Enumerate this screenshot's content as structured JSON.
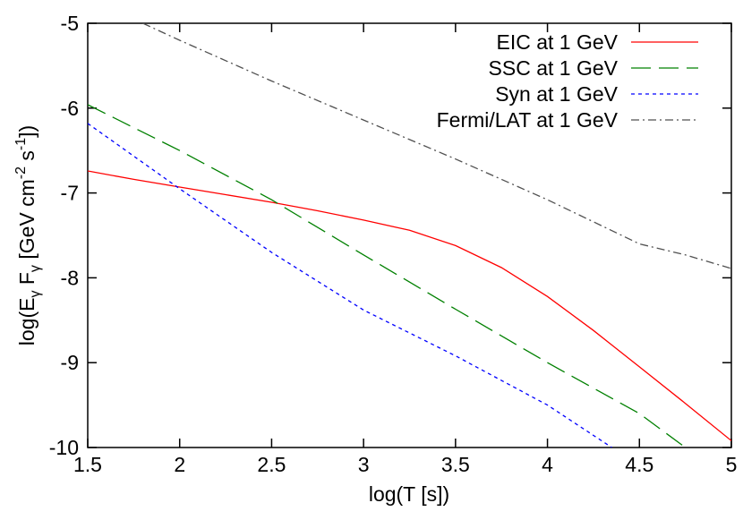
{
  "chart_data": {
    "type": "line",
    "title": "",
    "xlabel": "log(T [s])",
    "ylabel": "log(Eγ Fγ [GeV cm⁻² s⁻¹])",
    "ylabel_parts": {
      "open": "log(E",
      "sub1": "γ",
      "mid": " F",
      "sub2": "γ",
      "unit_open": " [GeV cm",
      "exp1": "-2",
      "space": " s",
      "exp2": "-1",
      "close": "])"
    },
    "xlim": [
      1.5,
      5
    ],
    "ylim": [
      -10,
      -5
    ],
    "xticks": [
      1.5,
      2,
      2.5,
      3,
      3.5,
      4,
      4.5,
      5
    ],
    "xtick_labels": [
      "1.5",
      "2",
      "2.5",
      "3",
      "3.5",
      "4",
      "4.5",
      "5"
    ],
    "yticks": [
      -10,
      -9,
      -8,
      -7,
      -6,
      -5
    ],
    "ytick_labels": [
      "-10",
      "-9",
      "-8",
      "-7",
      "-6",
      "-5"
    ],
    "grid": false,
    "legend_position": "top-right",
    "series": [
      {
        "name": "EIC at 1 GeV",
        "color": "#ff0000",
        "dash": "solid",
        "x": [
          1.5,
          1.75,
          2.0,
          2.25,
          2.5,
          2.75,
          3.0,
          3.25,
          3.5,
          3.75,
          4.0,
          4.25,
          4.5,
          4.75,
          5.0
        ],
        "y": [
          -6.74,
          -6.84,
          -6.93,
          -7.02,
          -7.11,
          -7.21,
          -7.32,
          -7.44,
          -7.62,
          -7.88,
          -8.22,
          -8.62,
          -9.05,
          -9.48,
          -9.92
        ]
      },
      {
        "name": "SSC at 1 GeV",
        "color": "#008000",
        "dash": "long",
        "x": [
          1.5,
          2.0,
          2.5,
          3.0,
          3.5,
          4.0,
          4.5,
          4.75
        ],
        "y": [
          -5.96,
          -6.5,
          -7.08,
          -7.73,
          -8.37,
          -9.0,
          -9.6,
          -10.0
        ]
      },
      {
        "name": "Syn at 1 GeV",
        "color": "#0000ff",
        "dash": "short",
        "x": [
          1.5,
          2.0,
          2.5,
          3.0,
          3.25,
          3.5,
          4.0,
          4.35
        ],
        "y": [
          -6.18,
          -6.95,
          -7.7,
          -8.38,
          -8.65,
          -8.92,
          -9.5,
          -10.0
        ]
      },
      {
        "name": "Fermi/LAT at 1 GeV",
        "color": "#505050",
        "dash": "dashdot",
        "x": [
          1.8,
          2.0,
          2.5,
          3.0,
          3.5,
          4.0,
          4.5,
          4.75,
          5.0
        ],
        "y": [
          -5.0,
          -5.2,
          -5.68,
          -6.14,
          -6.6,
          -7.08,
          -7.6,
          -7.73,
          -7.89
        ]
      }
    ]
  }
}
